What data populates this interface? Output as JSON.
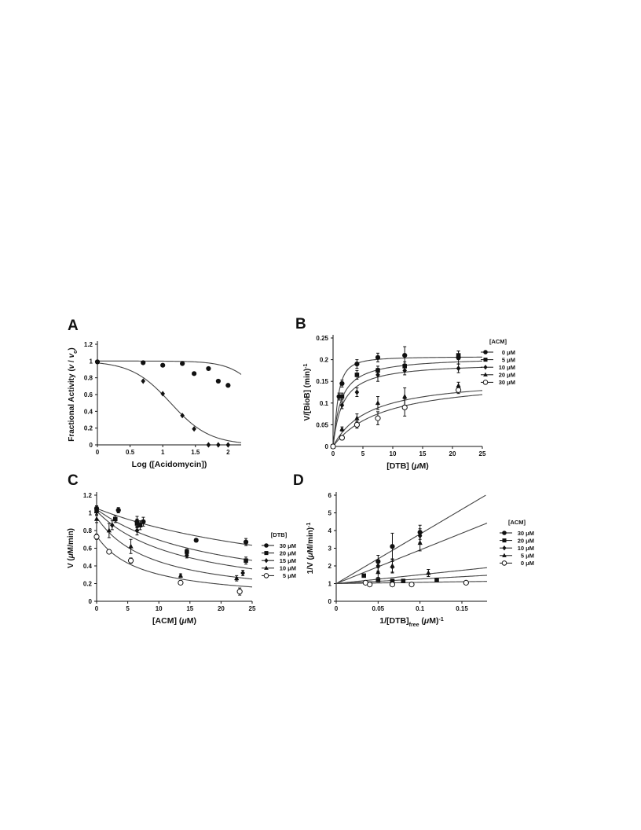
{
  "page": {
    "background": "#ffffff",
    "ink": "#111111",
    "curve_color": "#444444"
  },
  "chart_data": [
    {
      "panel": "A",
      "type": "scatter",
      "title": "",
      "xlabel": "Log ([Acidomycin])",
      "ylabel_parts": [
        "Fractional Activity (",
        "v",
        " / ",
        "v",
        "o",
        ")"
      ],
      "xlim": [
        0,
        2.2
      ],
      "ylim": [
        0,
        1.2
      ],
      "x_ticks": [
        0,
        0.5,
        1,
        1.5,
        2
      ],
      "x_tick_labels": [
        "0",
        "0.5",
        "1",
        "1.5",
        "2"
      ],
      "y_ticks": [
        0,
        0.2,
        0.4,
        0.6,
        0.8,
        1,
        1.2
      ],
      "y_tick_labels": [
        "0",
        "0.2",
        "0.4",
        "0.6",
        "0.8",
        "1",
        "1.2"
      ],
      "grid": false,
      "legend": null,
      "series": [
        {
          "marker": "circle-filled",
          "points": [
            [
              0,
              0.99
            ],
            [
              0.7,
              0.98
            ],
            [
              1.0,
              0.95
            ],
            [
              1.3,
              0.97
            ],
            [
              1.48,
              0.85
            ],
            [
              1.7,
              0.91
            ],
            [
              1.85,
              0.76
            ],
            [
              2.0,
              0.71
            ]
          ],
          "errors": []
        },
        {
          "marker": "diamond-filled",
          "points": [
            [
              0.0,
              0.99
            ],
            [
              0.7,
              0.76
            ],
            [
              1.0,
              0.61
            ],
            [
              1.3,
              0.35
            ],
            [
              1.48,
              0.19
            ],
            [
              1.7,
              0.0
            ],
            [
              1.85,
              0.0
            ],
            [
              2.0,
              0.0
            ]
          ],
          "errors": []
        }
      ],
      "curves": [
        {
          "model": "logistic",
          "top": 1.0,
          "log_ic50": 2.6,
          "hill": 1.8
        },
        {
          "model": "logistic",
          "top": 1.0,
          "log_ic50": 1.12,
          "hill": 1.45
        }
      ]
    },
    {
      "panel": "B",
      "type": "scatter",
      "title": "",
      "xlabel_parts": [
        "[DTB] (",
        "μ",
        "M)"
      ],
      "ylabel_parts": [
        "V/[BioB] (min)",
        "-1"
      ],
      "xlim": [
        0,
        25
      ],
      "ylim": [
        0,
        0.25
      ],
      "x_ticks": [
        0,
        5,
        10,
        15,
        20,
        25
      ],
      "x_tick_labels": [
        "0",
        "5",
        "10",
        "15",
        "20",
        "25"
      ],
      "y_ticks": [
        0,
        0.05,
        0.1,
        0.15,
        0.2,
        0.25
      ],
      "y_tick_labels": [
        "0",
        "0.05",
        "0.1",
        "0.15",
        "0.2",
        "0.25"
      ],
      "grid": false,
      "legend": {
        "title": "[ACM]",
        "placement": "right"
      },
      "series": [
        {
          "name": "0 μM",
          "marker": "circle-filled",
          "points": [
            [
              0,
              0
            ],
            [
              1,
              0.115
            ],
            [
              1.5,
              0.145
            ],
            [
              4,
              0.19
            ],
            [
              7.5,
              0.205
            ],
            [
              12,
              0.21
            ],
            [
              21,
              0.205
            ]
          ],
          "errors": [
            0,
            0.008,
            0.008,
            0.01,
            0.01,
            0.02,
            0.015
          ]
        },
        {
          "name": "5 μM",
          "marker": "square-filled",
          "points": [
            [
              0,
              0
            ],
            [
              1.5,
              0.115
            ],
            [
              4,
              0.165
            ],
            [
              7.5,
              0.175
            ],
            [
              12,
              0.185
            ],
            [
              21,
              0.21
            ]
          ],
          "errors": [
            0,
            0.008,
            0.01,
            0.01,
            0.01,
            0.01
          ]
        },
        {
          "name": "10 μM",
          "marker": "diamond-filled",
          "points": [
            [
              0,
              0
            ],
            [
              1.5,
              0.095
            ],
            [
              4,
              0.125
            ],
            [
              7.5,
              0.165
            ],
            [
              12,
              0.175
            ],
            [
              21,
              0.18
            ]
          ],
          "errors": [
            0,
            0.008,
            0.01,
            0.015,
            0.01,
            0.01
          ]
        },
        {
          "name": "20 μM",
          "marker": "triangle-filled",
          "points": [
            [
              0,
              0
            ],
            [
              1.5,
              0.04
            ],
            [
              4,
              0.065
            ],
            [
              7.5,
              0.1
            ],
            [
              12,
              0.115
            ],
            [
              21,
              0.14
            ]
          ],
          "errors": [
            0,
            0.005,
            0.01,
            0.015,
            0.02,
            0.008
          ]
        },
        {
          "name": "30 μM",
          "marker": "circle-open",
          "points": [
            [
              0,
              0
            ],
            [
              1.5,
              0.02
            ],
            [
              4,
              0.05
            ],
            [
              7.5,
              0.065
            ],
            [
              12,
              0.09
            ],
            [
              21,
              0.13
            ]
          ],
          "errors": [
            0,
            0.005,
            0.008,
            0.015,
            0.02,
            0.008
          ]
        }
      ],
      "curves": [
        {
          "model": "hyperbola-sigmoid",
          "vmax": 0.207,
          "k": 0.75,
          "n": 1.5
        },
        {
          "model": "hyperbola",
          "vmax": 0.207,
          "k": 1.3
        },
        {
          "model": "hyperbola",
          "vmax": 0.194,
          "k": 1.6
        },
        {
          "model": "hyperbola",
          "vmax": 0.16,
          "k": 6.0
        },
        {
          "model": "hyperbola",
          "vmax": 0.16,
          "k": 8.5
        }
      ]
    },
    {
      "panel": "C",
      "type": "scatter",
      "title": "",
      "xlabel_parts": [
        "[ACM] (",
        "μ",
        "M)"
      ],
      "ylabel_parts": [
        "V (",
        "μ",
        "M/min)"
      ],
      "xlim": [
        0,
        25
      ],
      "ylim": [
        0,
        1.2
      ],
      "x_ticks": [
        0,
        5,
        10,
        15,
        20,
        25
      ],
      "x_tick_labels": [
        "0",
        "5",
        "10",
        "15",
        "20",
        "25"
      ],
      "y_ticks": [
        0,
        0.2,
        0.4,
        0.6,
        0.8,
        1,
        1.2
      ],
      "y_tick_labels": [
        "0",
        "0.2",
        "0.4",
        "0.6",
        "0.8",
        "1",
        "1.2"
      ],
      "grid": false,
      "legend": {
        "title": "[DTB]",
        "placement": "right"
      },
      "series": [
        {
          "name": "30 μM",
          "marker": "circle-filled",
          "points": [
            [
              0,
              1.05
            ],
            [
              3.5,
              1.03
            ],
            [
              6.5,
              0.9
            ],
            [
              7.5,
              0.9
            ],
            [
              16,
              0.69
            ],
            [
              24,
              0.67
            ]
          ],
          "errors": [
            0.03,
            0.03,
            0.06,
            0.05,
            0,
            0.04
          ]
        },
        {
          "name": "20 μM",
          "marker": "square-filled",
          "points": [
            [
              0,
              1.03
            ],
            [
              3,
              0.93
            ],
            [
              6.5,
              0.88
            ],
            [
              7,
              0.86
            ],
            [
              14.5,
              0.56
            ],
            [
              24,
              0.46
            ]
          ],
          "errors": [
            0.03,
            0.04,
            0.05,
            0.05,
            0.03,
            0.04
          ]
        },
        {
          "name": "15 μM",
          "marker": "diamond-filled",
          "points": [
            [
              0,
              1.01
            ],
            [
              2.5,
              0.86
            ],
            [
              6.5,
              0.8
            ],
            [
              14.5,
              0.52
            ],
            [
              23.5,
              0.32
            ]
          ],
          "errors": [
            0.03,
            0.05,
            0.05,
            0.03,
            0.03
          ]
        },
        {
          "name": "10 μM",
          "marker": "triangle-filled",
          "points": [
            [
              0,
              0.93
            ],
            [
              2,
              0.8
            ],
            [
              5.5,
              0.62
            ],
            [
              13.5,
              0.29
            ],
            [
              22.5,
              0.26
            ]
          ],
          "errors": [
            0.04,
            0.08,
            0.08,
            0.02,
            0.03
          ]
        },
        {
          "name": "5 μM",
          "marker": "circle-open",
          "points": [
            [
              0,
              0.73
            ],
            [
              2,
              0.56
            ],
            [
              5.5,
              0.46
            ],
            [
              13.5,
              0.21
            ],
            [
              23,
              0.11
            ]
          ],
          "errors": [
            0.03,
            0.02,
            0.03,
            0.02,
            0.04
          ]
        }
      ],
      "curves": [
        {
          "model": "decay",
          "v0": 1.05,
          "k": 38
        },
        {
          "model": "decay",
          "v0": 1.04,
          "k": 20
        },
        {
          "model": "decay",
          "v0": 1.02,
          "k": 14
        },
        {
          "model": "decay",
          "v0": 0.95,
          "k": 9
        },
        {
          "model": "decay",
          "v0": 0.74,
          "k": 7
        }
      ]
    },
    {
      "panel": "D",
      "type": "line",
      "title": "",
      "xlabel_parts": [
        "1/[DTB]",
        "free",
        " (",
        "μ",
        "M)",
        "-1"
      ],
      "ylabel_parts": [
        "1/V (",
        "μ",
        "M/min)",
        "-1"
      ],
      "xlim": [
        0,
        0.18
      ],
      "ylim": [
        0,
        6
      ],
      "x_ticks": [
        0,
        0.05,
        0.1,
        0.15
      ],
      "x_tick_labels": [
        "0",
        "0.05",
        "0.1",
        "0.15"
      ],
      "y_ticks": [
        0,
        1,
        2,
        3,
        4,
        5,
        6
      ],
      "y_tick_labels": [
        "0",
        "1",
        "2",
        "3",
        "4",
        "5",
        "6"
      ],
      "grid": false,
      "legend": {
        "title": "[ACM]",
        "placement": "right"
      },
      "series": [
        {
          "name": "30 μM",
          "marker": "circle-filled",
          "points": [
            [
              0.05,
              2.25
            ],
            [
              0.067,
              3.1
            ],
            [
              0.1,
              3.9
            ]
          ],
          "errors": [
            0.35,
            0.75,
            0.4
          ]
        },
        {
          "name": "20 μM",
          "marker": "square-filled",
          "points": [
            [
              0.033,
              1.45
            ],
            [
              0.05,
              1.2
            ],
            [
              0.067,
              1.15
            ],
            [
              0.08,
              1.15
            ],
            [
              0.12,
              1.2
            ]
          ],
          "errors": [
            0,
            0,
            0,
            0,
            0
          ]
        },
        {
          "name": "10 μM",
          "marker": "diamond-filled",
          "points": [
            [
              0.05,
              2.0
            ],
            [
              0.067,
              1.95
            ],
            [
              0.1,
              3.7
            ]
          ],
          "errors": [
            0.3,
            0.3,
            0.4
          ]
        },
        {
          "name": "5 μM",
          "marker": "triangle-filled",
          "points": [
            [
              0.05,
              1.65
            ],
            [
              0.067,
              2.0
            ],
            [
              0.1,
              3.3
            ],
            [
              0.11,
              1.6
            ]
          ],
          "errors": [
            0.3,
            0.4,
            0.45,
            0.2
          ]
        },
        {
          "name": "0 μM",
          "marker": "circle-open",
          "points": [
            [
              0.035,
              1.05
            ],
            [
              0.04,
              0.95
            ],
            [
              0.067,
              0.95
            ],
            [
              0.09,
              0.95
            ],
            [
              0.155,
              1.05
            ]
          ],
          "errors": [
            0,
            0,
            0,
            0,
            0
          ]
        }
      ],
      "curves": [
        {
          "model": "linear",
          "intercept": 1.0,
          "slope": 28.0
        },
        {
          "model": "linear",
          "intercept": 1.0,
          "slope": 19.0
        },
        {
          "model": "linear",
          "intercept": 1.0,
          "slope": 5.0
        },
        {
          "model": "linear",
          "intercept": 1.0,
          "slope": 2.6
        },
        {
          "model": "linear",
          "intercept": 1.0,
          "slope": 0.7
        }
      ]
    }
  ]
}
